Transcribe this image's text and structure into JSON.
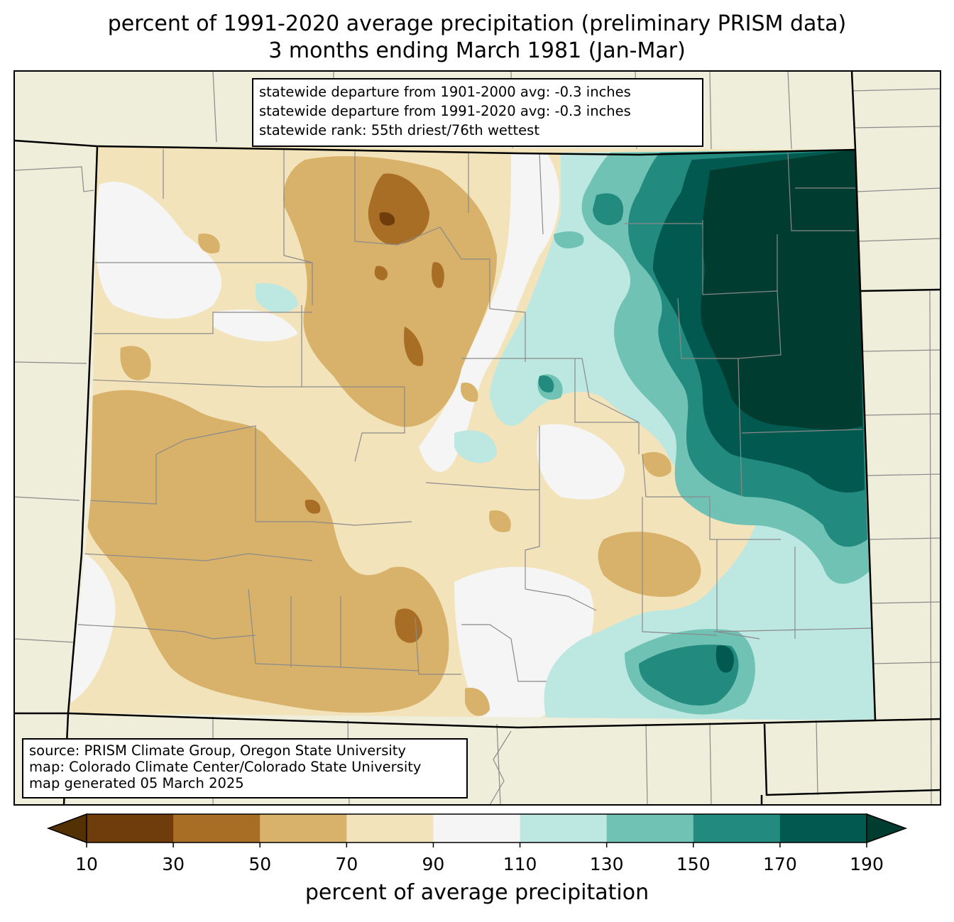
{
  "title": {
    "line1": "percent of 1991-2020 average precipitation (preliminary PRISM data)",
    "line2": "3 months ending March 1981 (Jan-Mar)"
  },
  "stats": {
    "line1": "statewide departure from 1901-2000 avg: -0.3 inches",
    "line2": "statewide departure from 1991-2020 avg: -0.3 inches",
    "line3": "statewide rank: 55th driest/76th wettest"
  },
  "credits": {
    "line1": "source: PRISM Climate Group, Oregon State University",
    "line2": "map: Colorado Climate Center/Colorado State University",
    "line3": "map generated 05 March 2025"
  },
  "colorbar": {
    "label": "percent of average precipitation",
    "ticks": [
      "10",
      "30",
      "50",
      "70",
      "90",
      "110",
      "130",
      "150",
      "170",
      "190"
    ],
    "under_color": "#543005",
    "over_color": "#003c30",
    "bins": [
      {
        "range": "10-30",
        "color": "#6f3d0b"
      },
      {
        "range": "30-50",
        "color": "#a96e25"
      },
      {
        "range": "50-70",
        "color": "#d8b26b"
      },
      {
        "range": "70-90",
        "color": "#f3e3bb"
      },
      {
        "range": "90-110",
        "color": "#f4f5f4"
      },
      {
        "range": "110-130",
        "color": "#bde7e1"
      },
      {
        "range": "130-150",
        "color": "#6fc2b4"
      },
      {
        "range": "150-170",
        "color": "#238a80"
      },
      {
        "range": "170-190",
        "color": "#01594f"
      }
    ]
  },
  "colors": {
    "land": "#efeedb",
    "county_lines": "#8a8a8a",
    "state_lines": "#000000"
  }
}
